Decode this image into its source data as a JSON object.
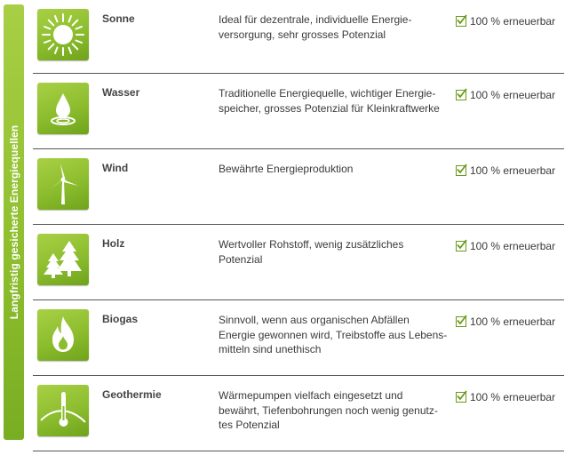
{
  "side_label": "Langfristig gesicherte Energiequellen",
  "rows": [
    {
      "name": "Sonne",
      "icon": "sun-icon",
      "desc": "Ideal für dezentrale, individuelle Energie-\nversorgung, sehr grosses Potenzial",
      "renewable": "100 % erneuerbar"
    },
    {
      "name": "Wasser",
      "icon": "water-drop-icon",
      "desc": "Traditionelle Energiequelle, wichtiger Energie-\nspeicher, grosses Potenzial für Kleinkraftwerke",
      "renewable": "100 % erneuerbar"
    },
    {
      "name": "Wind",
      "icon": "wind-turbine-icon",
      "desc": "Bewährte Energieproduktion",
      "renewable": "100 % erneuerbar"
    },
    {
      "name": "Holz",
      "icon": "trees-icon",
      "desc": "Wertvoller Rohstoff, wenig zusätzliches Potenzial",
      "renewable": "100 % erneuerbar"
    },
    {
      "name": "Biogas",
      "icon": "flame-icon",
      "desc": "Sinnvoll, wenn aus organischen Abfällen\nEnergie gewonnen wird, Treibstoffe aus Lebens-\nmitteln sind unethisch",
      "renewable": "100 % erneuerbar"
    },
    {
      "name": "Geothermie",
      "icon": "thermometer-icon",
      "desc": "Wärmepumpen vielfach eingesetzt und\nbewährt, Tiefenbohrungen noch wenig genutz-\ntes Potenzial",
      "renewable": "100 % erneuerbar"
    }
  ],
  "colors": {
    "accent": "#8cbd2e",
    "text": "#3a3a3a",
    "rule": "#555555"
  }
}
